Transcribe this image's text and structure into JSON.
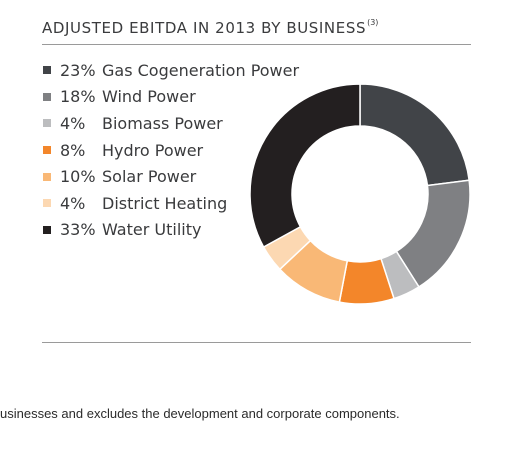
{
  "header": {
    "title": "ADJUSTED EBITDA IN 2013 BY BUSINESS",
    "footnote_ref": "(3)"
  },
  "footnote": "usinesses and excludes the development and corporate components.",
  "chart_data": {
    "type": "pie",
    "donut": true,
    "title": "ADJUSTED EBITDA IN 2013 BY BUSINESS",
    "legend_position": "left",
    "series": [
      {
        "label": "Gas Cogeneration Power",
        "pct_text": "23%",
        "value": 23,
        "color": "#414448"
      },
      {
        "label": "Wind Power",
        "pct_text": "18%",
        "value": 18,
        "color": "#7f8083"
      },
      {
        "label": "Biomass Power",
        "pct_text": "4%",
        "value": 4,
        "color": "#bcbdbf"
      },
      {
        "label": "Hydro Power",
        "pct_text": "8%",
        "value": 8,
        "color": "#f3862a"
      },
      {
        "label": "Solar Power",
        "pct_text": "10%",
        "value": 10,
        "color": "#f9b876"
      },
      {
        "label": "District Heating",
        "pct_text": "4%",
        "value": 4,
        "color": "#fcd8b2"
      },
      {
        "label": "Water Utility",
        "pct_text": "33%",
        "value": 33,
        "color": "#231f20"
      }
    ]
  }
}
